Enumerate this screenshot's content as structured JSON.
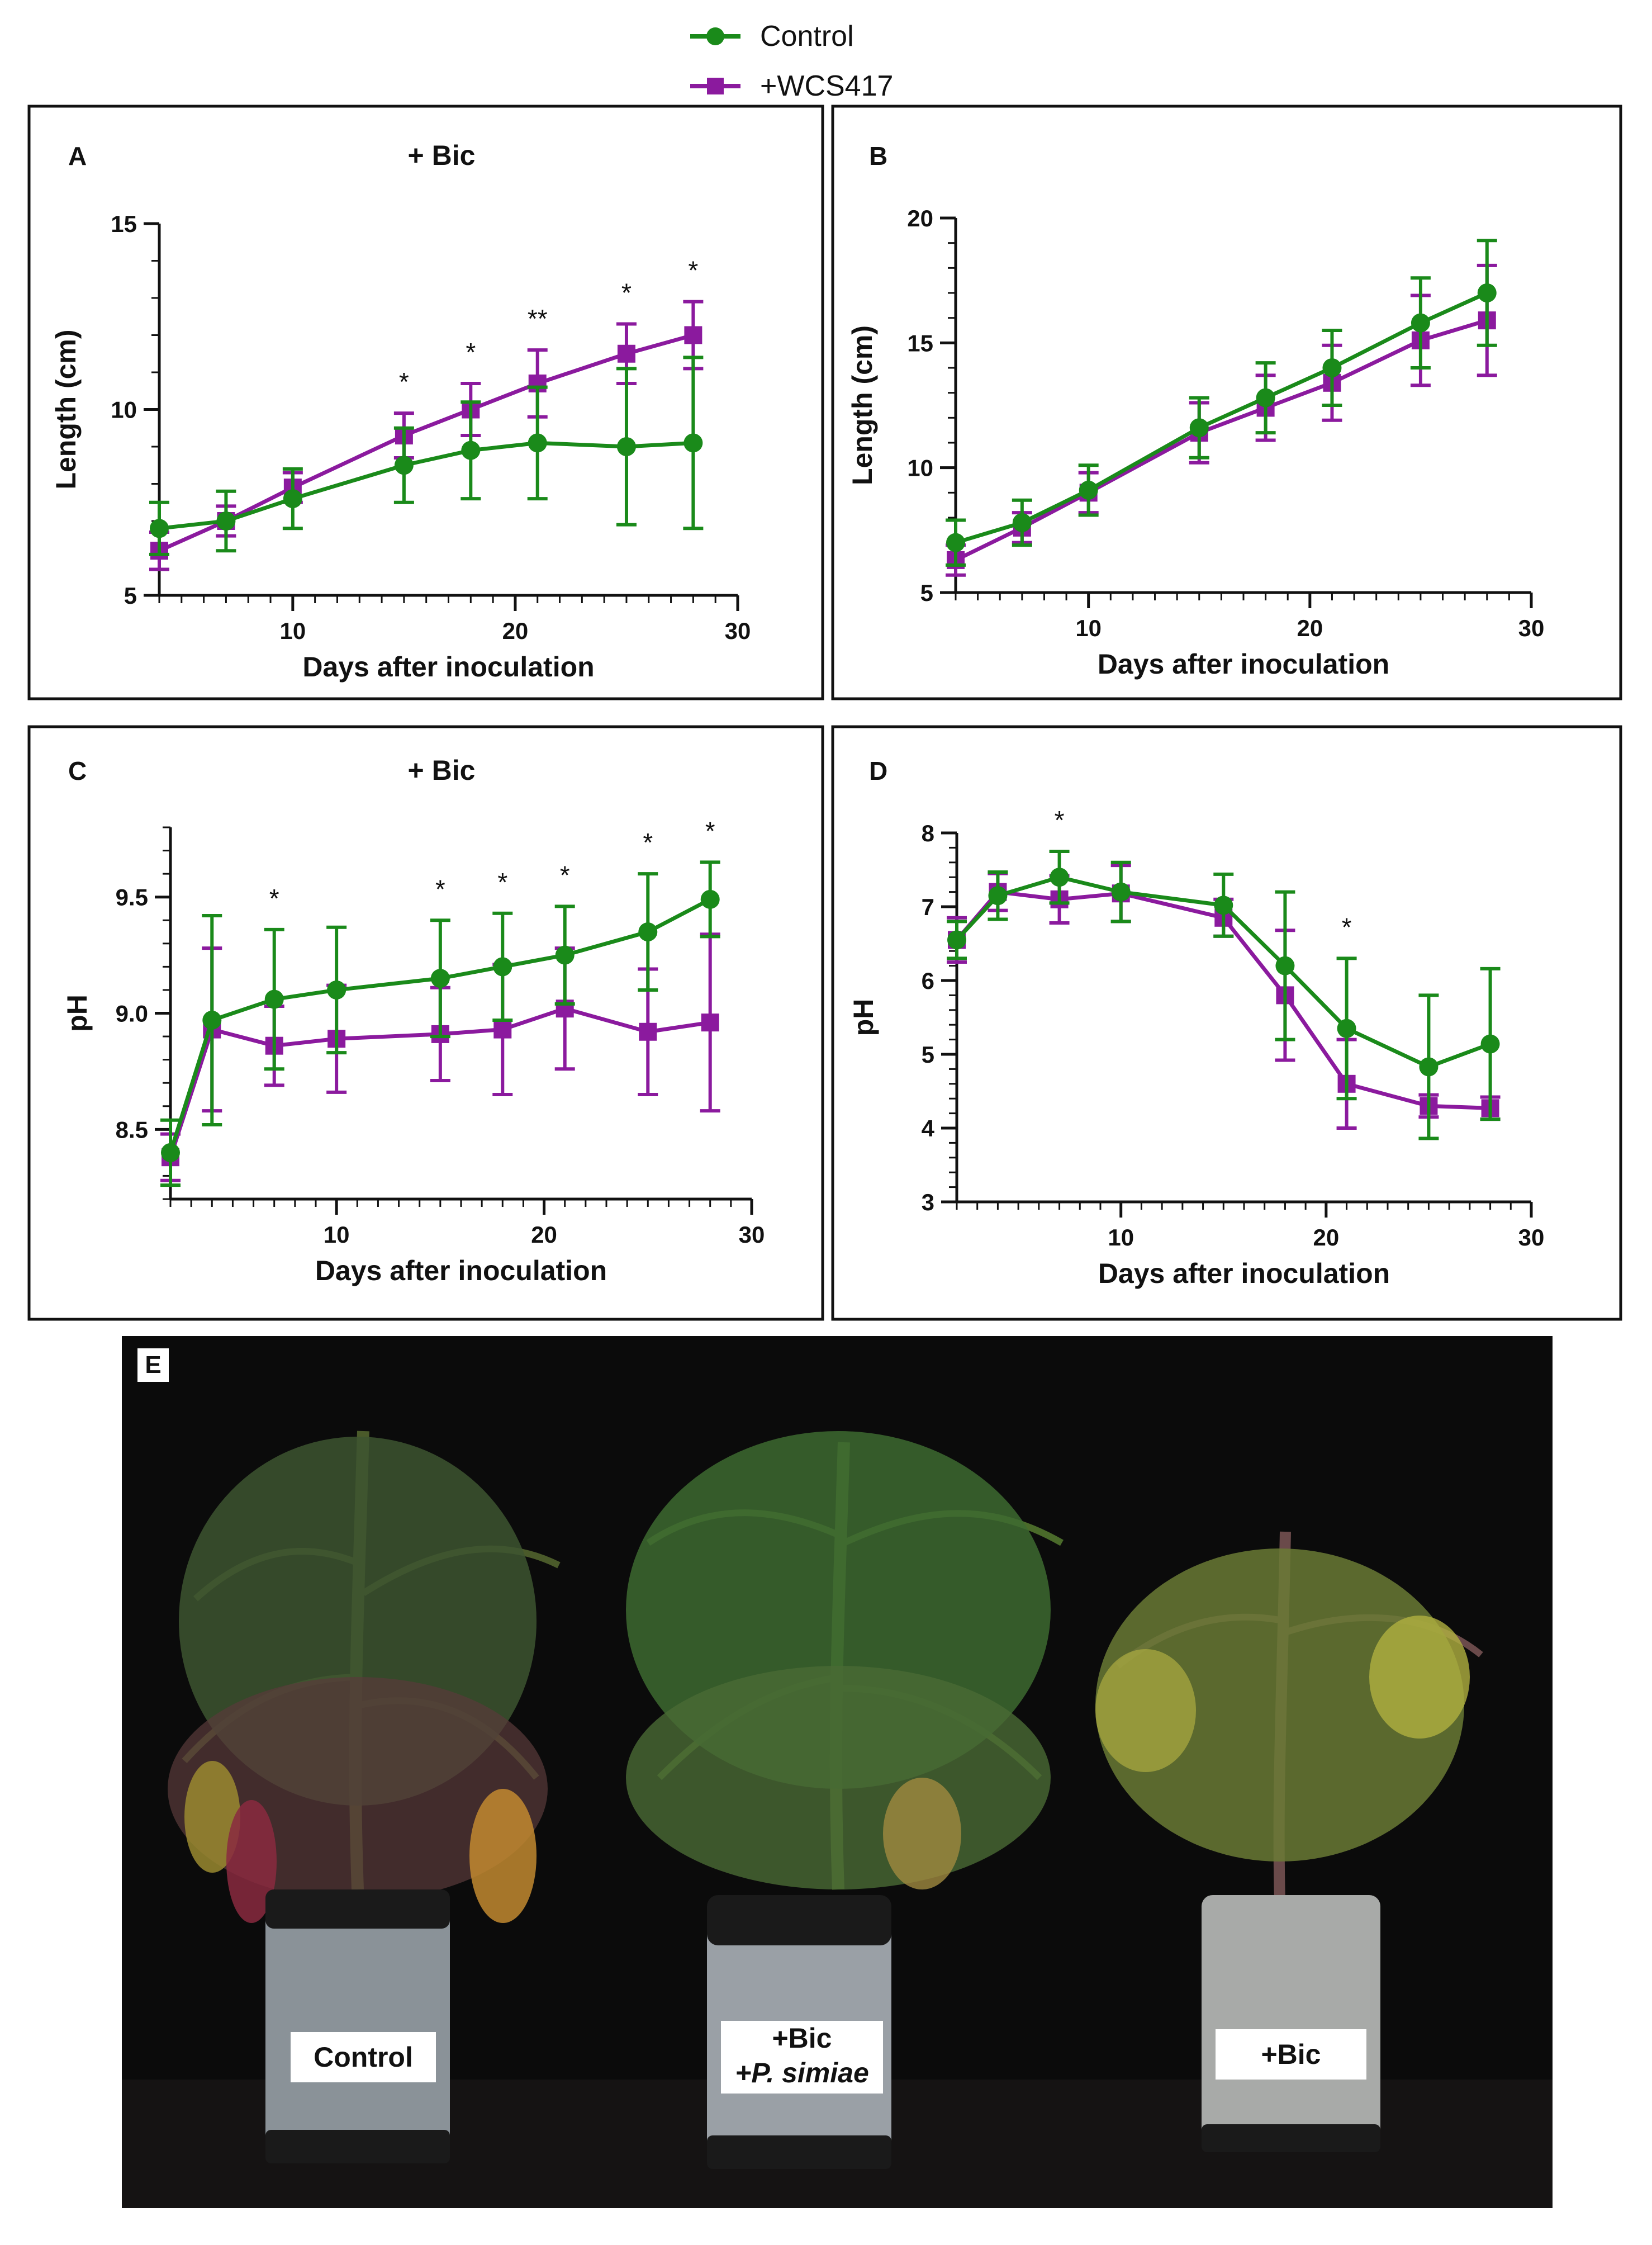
{
  "legend": {
    "control_label": "Control",
    "wcs_label": "+WCS417",
    "control_color": "#1a8a1a",
    "wcs_color": "#8b1a9e"
  },
  "chart_data": [
    {
      "panel": "A",
      "type": "line",
      "subtitle": "+ Bic",
      "xlabel": "Days after inoculation",
      "ylabel": "Length (cm)",
      "xlim": [
        4,
        30
      ],
      "ylim": [
        5,
        15
      ],
      "xticks": [
        10,
        20,
        30
      ],
      "yticks": [
        5,
        10,
        15
      ],
      "x": [
        4,
        7,
        10,
        15,
        18,
        21,
        25,
        28
      ],
      "series": [
        {
          "name": "Control",
          "values": [
            6.8,
            7.0,
            7.6,
            8.5,
            8.9,
            9.1,
            9.0,
            9.1
          ],
          "errors": [
            0.7,
            0.8,
            0.8,
            1.0,
            1.3,
            1.5,
            2.1,
            2.3
          ]
        },
        {
          "name": "+WCS417",
          "values": [
            6.2,
            7.0,
            7.9,
            9.3,
            10.0,
            10.7,
            11.5,
            12.0
          ],
          "errors": [
            0.5,
            0.4,
            0.4,
            0.6,
            0.7,
            0.9,
            0.8,
            0.9
          ]
        }
      ],
      "annotations": [
        {
          "x": 15,
          "label": "*"
        },
        {
          "x": 18,
          "label": "*"
        },
        {
          "x": 21,
          "label": "**"
        },
        {
          "x": 25,
          "label": "*"
        },
        {
          "x": 28,
          "label": "*"
        }
      ]
    },
    {
      "panel": "B",
      "type": "line",
      "subtitle": "",
      "xlabel": "Days after inoculation",
      "ylabel": "Length (cm)",
      "xlim": [
        4,
        30
      ],
      "ylim": [
        5,
        20
      ],
      "xticks": [
        10,
        20,
        30
      ],
      "yticks": [
        5,
        10,
        15,
        20
      ],
      "x": [
        4,
        7,
        10,
        15,
        18,
        21,
        25,
        28
      ],
      "series": [
        {
          "name": "Control",
          "values": [
            7.0,
            7.8,
            9.1,
            11.6,
            12.8,
            14.0,
            15.8,
            17.0
          ],
          "errors": [
            0.9,
            0.9,
            1.0,
            1.2,
            1.4,
            1.5,
            1.8,
            2.1
          ]
        },
        {
          "name": "+WCS417",
          "values": [
            6.3,
            7.6,
            9.0,
            11.4,
            12.4,
            13.4,
            15.1,
            15.9
          ],
          "errors": [
            0.6,
            0.6,
            0.8,
            1.2,
            1.3,
            1.5,
            1.8,
            2.2
          ]
        }
      ],
      "annotations": []
    },
    {
      "panel": "C",
      "type": "line",
      "subtitle": "+ Bic",
      "xlabel": "Days after inoculation",
      "ylabel": "pH",
      "xlim": [
        2,
        30
      ],
      "ylim": [
        8.2,
        9.8
      ],
      "xticks": [
        10,
        20,
        30
      ],
      "yticks": [
        8.5,
        9.0,
        9.5
      ],
      "x": [
        2,
        4,
        7,
        10,
        15,
        18,
        21,
        25,
        28
      ],
      "series": [
        {
          "name": "Control",
          "values": [
            8.4,
            8.97,
            9.06,
            9.1,
            9.15,
            9.2,
            9.25,
            9.35,
            9.49
          ],
          "errors": [
            0.14,
            0.45,
            0.3,
            0.27,
            0.25,
            0.23,
            0.21,
            0.25,
            0.16
          ]
        },
        {
          "name": "+WCS417",
          "values": [
            8.38,
            8.93,
            8.86,
            8.89,
            8.91,
            8.93,
            9.02,
            8.92,
            8.96
          ],
          "errors": [
            0.1,
            0.35,
            0.17,
            0.23,
            0.2,
            0.28,
            0.26,
            0.27,
            0.38
          ]
        }
      ],
      "annotations": [
        {
          "x": 7,
          "label": "*"
        },
        {
          "x": 15,
          "label": "*"
        },
        {
          "x": 18,
          "label": "*"
        },
        {
          "x": 21,
          "label": "*"
        },
        {
          "x": 25,
          "label": "*"
        },
        {
          "x": 28,
          "label": "*"
        }
      ]
    },
    {
      "panel": "D",
      "type": "line",
      "subtitle": "",
      "xlabel": "Days after inoculation",
      "ylabel": "pH",
      "xlim": [
        2,
        30
      ],
      "ylim": [
        3,
        8
      ],
      "xticks": [
        10,
        20,
        30
      ],
      "yticks": [
        3,
        4,
        5,
        6,
        7,
        8
      ],
      "x": [
        2,
        4,
        7,
        10,
        15,
        18,
        21,
        25,
        28
      ],
      "series": [
        {
          "name": "Control",
          "values": [
            6.55,
            7.15,
            7.4,
            7.2,
            7.02,
            6.2,
            5.35,
            4.83,
            5.14
          ],
          "errors": [
            0.25,
            0.32,
            0.35,
            0.4,
            0.42,
            1.0,
            0.95,
            0.97,
            1.02
          ]
        },
        {
          "name": "+WCS417",
          "values": [
            6.55,
            7.2,
            7.1,
            7.18,
            6.85,
            5.8,
            4.6,
            4.3,
            4.27
          ],
          "errors": [
            0.3,
            0.25,
            0.32,
            0.38,
            0.25,
            0.88,
            0.6,
            0.15,
            0.15
          ]
        }
      ],
      "annotations": [
        {
          "x": 7,
          "label": "*"
        },
        {
          "x": 21,
          "label": "*"
        }
      ]
    }
  ],
  "photo": {
    "panel_label": "E",
    "labels": [
      "Control",
      "+Bic",
      "+P. simiae",
      "+Bic"
    ]
  }
}
